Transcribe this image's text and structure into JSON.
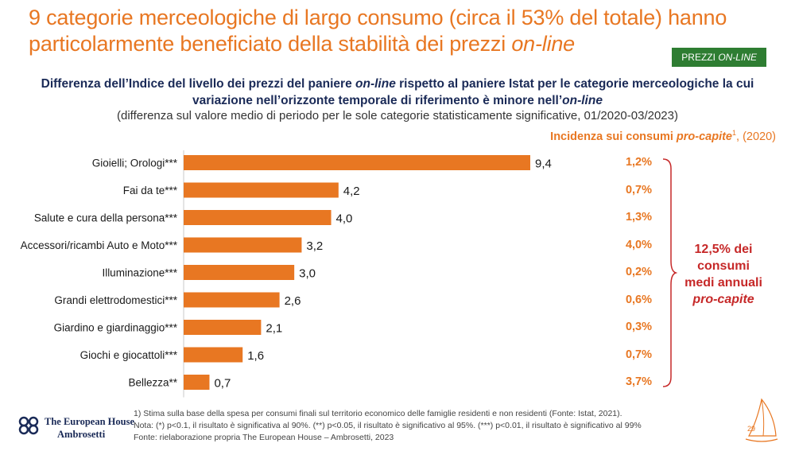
{
  "header": {
    "title_part1": "9 categorie merceologiche di largo consumo (circa il 53% del totale) hanno particolarmente beneficiato della stabilità dei prezzi ",
    "title_italic": "on-line",
    "tag_prefix": "PREZZI ",
    "tag_italic": "ON-LINE"
  },
  "subtitle": {
    "line1_a": "Differenza dell’Indice del livello dei prezzi del paniere ",
    "line1_italic": "on-line",
    "line1_b": " rispetto al paniere Istat per le categorie merceologiche la cui",
    "line2_a": "variazione nell’orizzonte temporale di riferimento è minore nell’",
    "line2_italic": "on-line",
    "note": "(differenza sul valore medio di periodo per le sole categorie statisticamente significative, 01/2020-03/2023)"
  },
  "incidence": {
    "head_bold": "Incidenza sui consumi ",
    "head_italic": "pro-capite",
    "head_sup": "1",
    "head_rest": ", (2020)",
    "values": [
      "1,2%",
      "0,7%",
      "1,3%",
      "4,0%",
      "0,2%",
      "0,6%",
      "0,3%",
      "0,7%",
      "3,7%"
    ],
    "summary_line1": "12,5% dei",
    "summary_line2": "consumi",
    "summary_line3": "medi annuali",
    "summary_italic": "pro-capite"
  },
  "chart_data": {
    "type": "bar",
    "orientation": "horizontal",
    "categories": [
      "Gioielli; Orologi***",
      "Fai da te***",
      "Salute e cura della persona***",
      "Accessori/ricambi Auto e Moto***",
      "Illuminazione***",
      "Grandi elettrodomestici***",
      "Giardino e giardinaggio***",
      "Giochi e giocattoli***",
      "Bellezza**"
    ],
    "values": [
      9.4,
      4.2,
      4.0,
      3.2,
      3.0,
      2.6,
      2.1,
      1.6,
      0.7
    ],
    "value_labels": [
      "9,4",
      "4,2",
      "4,0",
      "3,2",
      "3,0",
      "2,6",
      "2,1",
      "1,6",
      "0,7"
    ],
    "xlim": [
      0,
      9.4
    ],
    "bar_color": "#E87722",
    "grid": false
  },
  "footer": {
    "line1": "1) Stima sulla base della spesa per consumi finali sul territorio economico delle famiglie residenti e non residenti (Fonte: Istat, 2021).",
    "line2": "Nota: (*) p<0.1, il risultato è significativa al 90%. (**) p<0.05, il risultato è significativo al 95%. (***) p<0.01, il risultato è significativo al 99%",
    "line3": "Fonte: rielaborazione propria The European House – Ambrosetti, 2023",
    "logo_line1": "The European House",
    "logo_line2": "Ambrosetti",
    "page": "29"
  },
  "colors": {
    "accent": "#E87722",
    "navy": "#1a2a57",
    "tag_green": "#2E7D32",
    "summary_red": "#C62828"
  }
}
